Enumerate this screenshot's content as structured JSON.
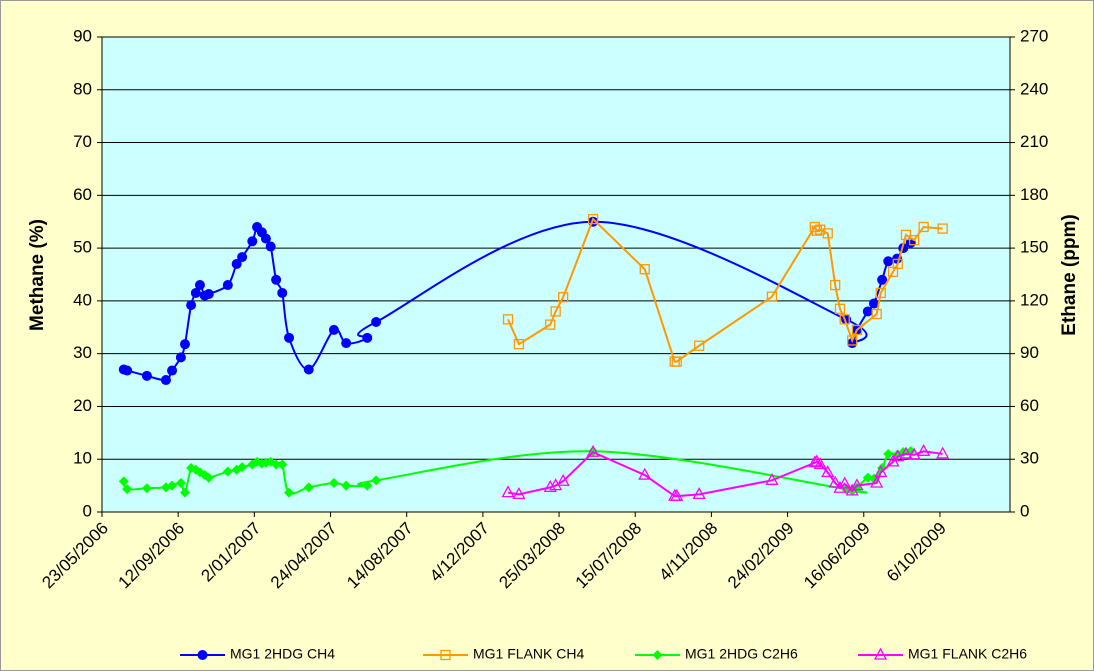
{
  "chart_data": {
    "type": "line",
    "ylabel": "Methane (%)",
    "y2label": "Ethane (ppm)",
    "xlim": [
      "2006-05-23",
      "2010-01-17"
    ],
    "xticks": [
      {
        "value": "2006-05-23",
        "label": "23/05/2006"
      },
      {
        "value": "2006-09-12",
        "label": "12/09/2006"
      },
      {
        "value": "2007-01-02",
        "label": "2/01/2007"
      },
      {
        "value": "2007-04-24",
        "label": "24/04/2007"
      },
      {
        "value": "2007-08-14",
        "label": "14/08/2007"
      },
      {
        "value": "2007-12-04",
        "label": "4/12/2007"
      },
      {
        "value": "2008-03-25",
        "label": "25/03/2008"
      },
      {
        "value": "2008-07-15",
        "label": "15/07/2008"
      },
      {
        "value": "2008-11-04",
        "label": "4/11/2008"
      },
      {
        "value": "2009-02-24",
        "label": "24/02/2009"
      },
      {
        "value": "2009-06-16",
        "label": "16/06/2009"
      },
      {
        "value": "2009-10-06",
        "label": "6/10/2009"
      }
    ],
    "ylim": [
      0,
      90
    ],
    "yticks": [
      0,
      10,
      20,
      30,
      40,
      50,
      60,
      70,
      80,
      90
    ],
    "y2lim": [
      0,
      270
    ],
    "y2ticks": [
      0,
      30,
      60,
      90,
      120,
      150,
      180,
      210,
      240,
      270
    ],
    "grid": true,
    "legend": "bottom",
    "series": [
      {
        "name": "MG1 2HDG CH4",
        "color": "#0000ff",
        "marker": "circle",
        "smooth": true,
        "x": [
          "2006-06-24",
          "2006-06-29",
          "2006-07-28",
          "2006-08-25",
          "2006-09-03",
          "2006-09-16",
          "2006-09-22",
          "2006-10-01",
          "2006-10-08",
          "2006-10-14",
          "2006-10-21",
          "2006-10-27",
          "2006-11-24",
          "2006-12-07",
          "2006-12-15",
          "2006-12-30",
          "2007-01-06",
          "2007-01-13",
          "2007-01-19",
          "2007-01-26",
          "2007-02-03",
          "2007-02-12",
          "2007-02-22",
          "2007-03-23",
          "2007-04-29",
          "2007-05-17",
          "2007-06-17",
          "2007-06-30",
          "2008-05-14",
          "2009-05-21",
          "2009-05-30",
          "2009-06-06",
          "2009-06-22",
          "2009-07-01",
          "2009-07-13",
          "2009-07-22",
          "2009-08-04",
          "2009-08-13",
          "2009-08-24"
        ],
        "values": [
          27,
          26.8,
          25.8,
          25,
          26.8,
          29.3,
          31.8,
          39.2,
          41.5,
          43,
          41,
          41.3,
          43,
          47,
          48.3,
          51.3,
          54,
          53,
          51.8,
          50.3,
          44,
          41.5,
          33,
          27,
          34.5,
          32,
          33,
          36,
          55,
          36.5,
          32,
          34.5,
          38,
          39.5,
          44,
          47.5,
          48,
          50,
          51
        ]
      },
      {
        "name": "MG1 FLANK CH4",
        "color": "#ff9900",
        "marker": "square",
        "smooth": false,
        "x": [
          "2008-01-10",
          "2008-01-26",
          "2008-03-12",
          "2008-03-20",
          "2008-03-31",
          "2008-05-14",
          "2008-07-29",
          "2008-09-11",
          "2008-09-14",
          "2008-10-17",
          "2009-02-01",
          "2009-04-05",
          "2009-04-08",
          "2009-04-13",
          "2009-04-24",
          "2009-05-05",
          "2009-05-12",
          "2009-05-19",
          "2009-05-30",
          "2009-06-06",
          "2009-07-05",
          "2009-07-11",
          "2009-07-29",
          "2009-08-05",
          "2009-08-17",
          "2009-08-29",
          "2009-09-12",
          "2009-10-10"
        ],
        "values": [
          36.5,
          31.8,
          35.5,
          38,
          40.7,
          55.5,
          46,
          28.5,
          28.5,
          31.5,
          40.8,
          54,
          53.3,
          53.5,
          52.8,
          43,
          38.5,
          36.5,
          32.5,
          34.5,
          37.5,
          41.5,
          45.5,
          47,
          52.5,
          51.5,
          54,
          53.7
        ]
      },
      {
        "name": "MG1 2HDG C2H6",
        "color": "#00ff00",
        "marker": "diamond",
        "smooth": true,
        "axis": "y2",
        "x": [
          "2006-06-24",
          "2006-06-29",
          "2006-07-28",
          "2006-08-25",
          "2006-09-03",
          "2006-09-16",
          "2006-09-22",
          "2006-10-01",
          "2006-10-08",
          "2006-10-14",
          "2006-10-21",
          "2006-10-27",
          "2006-11-24",
          "2006-12-07",
          "2006-12-15",
          "2006-12-30",
          "2007-01-06",
          "2007-01-13",
          "2007-01-19",
          "2007-01-26",
          "2007-02-03",
          "2007-02-12",
          "2007-02-22",
          "2007-03-23",
          "2007-04-29",
          "2007-05-17",
          "2007-06-17",
          "2007-06-30",
          "2008-05-14",
          "2009-05-21",
          "2009-05-30",
          "2009-06-06",
          "2009-06-22",
          "2009-07-01",
          "2009-07-13",
          "2009-07-22",
          "2009-08-04",
          "2009-08-13",
          "2009-08-24"
        ],
        "values": [
          17.4,
          13,
          13.5,
          14,
          15,
          16.5,
          11,
          25,
          24,
          22.5,
          21,
          19.5,
          23,
          24,
          25.5,
          27,
          28.5,
          27.5,
          28,
          28.5,
          27,
          27,
          11,
          14,
          16.5,
          15,
          15,
          18,
          34.5,
          13,
          12,
          14,
          19.5,
          19,
          25,
          33,
          32.5,
          34,
          34.5
        ]
      },
      {
        "name": "MG1 FLANK C2H6",
        "color": "#ff00ff",
        "marker": "triangle",
        "smooth": false,
        "axis": "y2",
        "x": [
          "2008-01-10",
          "2008-01-26",
          "2008-03-12",
          "2008-03-20",
          "2008-03-31",
          "2008-05-14",
          "2008-07-29",
          "2008-09-11",
          "2008-09-14",
          "2008-10-17",
          "2009-02-01",
          "2009-04-05",
          "2009-04-08",
          "2009-04-13",
          "2009-04-24",
          "2009-05-05",
          "2009-05-12",
          "2009-05-19",
          "2009-05-30",
          "2009-06-06",
          "2009-07-05",
          "2009-07-11",
          "2009-07-29",
          "2009-08-05",
          "2009-08-17",
          "2009-08-29",
          "2009-09-12",
          "2009-10-10"
        ],
        "values": [
          11,
          10,
          14,
          15,
          17.5,
          34,
          21,
          9,
          9,
          10,
          18,
          28,
          28.5,
          27,
          22.5,
          16.5,
          13.5,
          16,
          12,
          15,
          16.5,
          22.5,
          28.5,
          31.5,
          33,
          32.5,
          34.5,
          33
        ]
      }
    ]
  }
}
